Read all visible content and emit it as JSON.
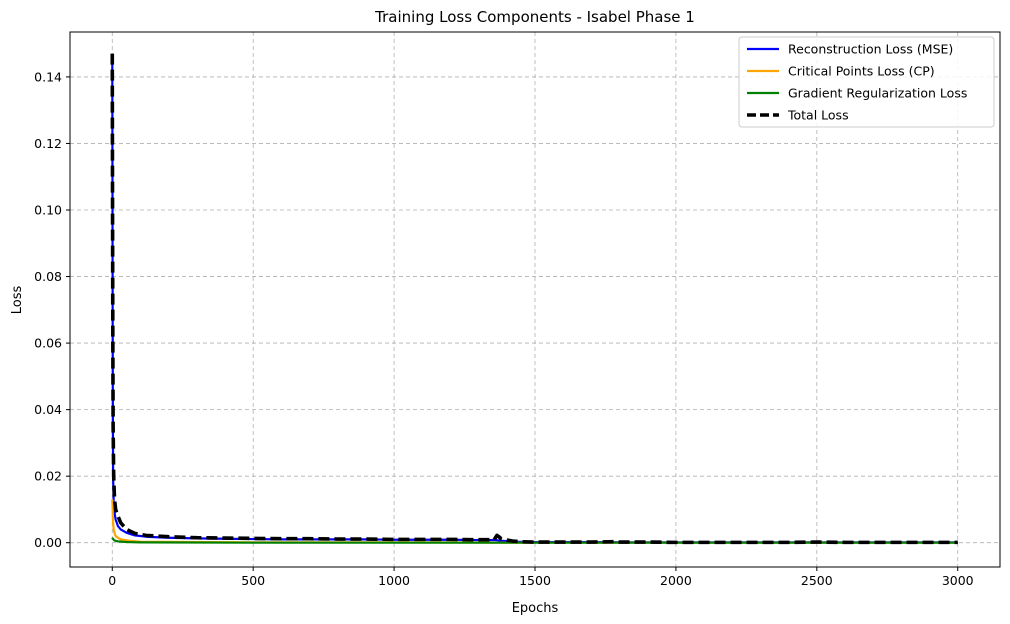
{
  "chart_data": {
    "type": "line",
    "title": "Training Loss Components - Isabel Phase 1",
    "xlabel": "Epochs",
    "ylabel": "Loss",
    "xlim": [
      -150,
      3150
    ],
    "ylim": [
      -0.0073,
      0.1535
    ],
    "xticks": [
      0,
      500,
      1000,
      1500,
      2000,
      2500,
      3000
    ],
    "xtick_labels": [
      "0",
      "500",
      "1000",
      "1500",
      "2000",
      "2500",
      "3000"
    ],
    "yticks": [
      0.0,
      0.02,
      0.04,
      0.06,
      0.08,
      0.1,
      0.12,
      0.14
    ],
    "ytick_labels": [
      "0.00",
      "0.02",
      "0.04",
      "0.06",
      "0.08",
      "0.10",
      "0.12",
      "0.14"
    ],
    "grid": true,
    "legend_position": "top-right",
    "series": [
      {
        "name": "Reconstruction Loss (MSE)",
        "color": "#0000ff",
        "style": "solid",
        "x": [
          0,
          1,
          2,
          3,
          5,
          8,
          12,
          20,
          30,
          50,
          80,
          120,
          200,
          300,
          400,
          500,
          600,
          700,
          800,
          900,
          1000,
          1100,
          1200,
          1300,
          1360,
          1380,
          1420,
          1500,
          1700,
          1900,
          2100,
          2300,
          2500,
          2700,
          2900,
          3000
        ],
        "y": [
          0.146,
          0.09,
          0.04,
          0.02,
          0.012,
          0.009,
          0.007,
          0.005,
          0.004,
          0.003,
          0.0022,
          0.0018,
          0.0015,
          0.0013,
          0.0012,
          0.0011,
          0.001,
          0.001,
          0.001,
          0.001,
          0.0009,
          0.0009,
          0.0009,
          0.0008,
          0.0008,
          0.0006,
          0.0003,
          0.0002,
          0.0002,
          0.0001,
          0.0001,
          0.0001,
          0.0001,
          0.0001,
          0.0001,
          0.0001
        ]
      },
      {
        "name": "Critical Points Loss (CP)",
        "color": "#ffa500",
        "style": "solid",
        "x": [
          0,
          1,
          2,
          3,
          5,
          8,
          12,
          20,
          30,
          60,
          100,
          500,
          1000,
          1500,
          2000,
          2500,
          3000
        ],
        "y": [
          0.013,
          0.011,
          0.008,
          0.006,
          0.004,
          0.003,
          0.002,
          0.0015,
          0.001,
          0.0006,
          0.0003,
          0.0001,
          0.0001,
          0.0,
          0.0,
          0.0,
          0.0
        ]
      },
      {
        "name": "Gradient Regularization Loss",
        "color": "#008000",
        "style": "solid",
        "x": [
          0,
          2,
          5,
          10,
          20,
          50,
          100,
          500,
          1000,
          1500,
          2000,
          2500,
          3000
        ],
        "y": [
          0.0015,
          0.0012,
          0.0009,
          0.0006,
          0.0004,
          0.0002,
          0.0001,
          0.0,
          0.0,
          0.0,
          0.0,
          0.0,
          0.0
        ]
      },
      {
        "name": "Total Loss",
        "color": "#000000",
        "style": "dashed",
        "x": [
          0,
          1,
          2,
          3,
          5,
          8,
          12,
          20,
          30,
          50,
          80,
          120,
          200,
          300,
          400,
          500,
          600,
          700,
          800,
          900,
          1000,
          1100,
          1200,
          1300,
          1355,
          1365,
          1372,
          1380,
          1400,
          1420,
          1450,
          1500,
          1600,
          1700,
          1780,
          1800,
          1900,
          2000,
          2100,
          2200,
          2300,
          2400,
          2500,
          2600,
          2700,
          2800,
          2900,
          3000
        ],
        "y": [
          0.147,
          0.1,
          0.06,
          0.035,
          0.02,
          0.013,
          0.01,
          0.008,
          0.006,
          0.004,
          0.0028,
          0.0022,
          0.0018,
          0.0015,
          0.0014,
          0.0013,
          0.0012,
          0.0012,
          0.0011,
          0.0011,
          0.001,
          0.001,
          0.001,
          0.0009,
          0.0009,
          0.0022,
          0.0018,
          0.0012,
          0.0008,
          0.0005,
          0.0003,
          0.0002,
          0.0002,
          0.0002,
          0.0003,
          0.0002,
          0.0002,
          0.0001,
          0.0001,
          0.0001,
          0.0001,
          0.0001,
          0.0002,
          0.0001,
          0.0001,
          0.0001,
          0.0001,
          0.0001
        ]
      }
    ]
  }
}
